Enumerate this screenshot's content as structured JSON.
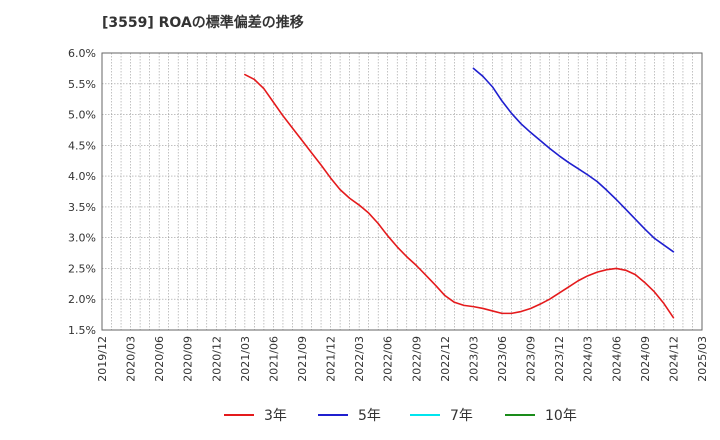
{
  "chart_data": {
    "type": "line",
    "title": "[3559]  ROAの標準偏差の推移",
    "ylim": [
      1.5,
      6.0
    ],
    "y_ticks": [
      "1.5%",
      "2.0%",
      "2.5%",
      "3.0%",
      "3.5%",
      "4.0%",
      "4.5%",
      "5.0%",
      "5.5%",
      "6.0%"
    ],
    "x_ticks": [
      "2019/12",
      "2020/03",
      "2020/06",
      "2020/09",
      "2020/12",
      "2021/03",
      "2021/06",
      "2021/09",
      "2021/12",
      "2022/03",
      "2022/06",
      "2022/09",
      "2022/12",
      "2023/03",
      "2023/06",
      "2023/09",
      "2023/12",
      "2024/03",
      "2024/06",
      "2024/09",
      "2024/12",
      "2025/03"
    ],
    "grid": true,
    "legend_position": "bottom",
    "series": [
      {
        "name": "3年",
        "color": "#e41a1c",
        "values": [
          [
            "2021/03",
            5.65
          ],
          [
            "2021/04",
            5.57
          ],
          [
            "2021/05",
            5.42
          ],
          [
            "2021/06",
            5.2
          ],
          [
            "2021/07",
            4.98
          ],
          [
            "2021/08",
            4.78
          ],
          [
            "2021/09",
            4.58
          ],
          [
            "2021/10",
            4.38
          ],
          [
            "2021/11",
            4.18
          ],
          [
            "2021/12",
            3.97
          ],
          [
            "2022/01",
            3.78
          ],
          [
            "2022/02",
            3.64
          ],
          [
            "2022/03",
            3.53
          ],
          [
            "2022/04",
            3.4
          ],
          [
            "2022/05",
            3.23
          ],
          [
            "2022/06",
            3.03
          ],
          [
            "2022/07",
            2.85
          ],
          [
            "2022/08",
            2.69
          ],
          [
            "2022/09",
            2.55
          ],
          [
            "2022/10",
            2.39
          ],
          [
            "2022/11",
            2.23
          ],
          [
            "2022/12",
            2.06
          ],
          [
            "2023/01",
            1.95
          ],
          [
            "2023/02",
            1.9
          ],
          [
            "2023/03",
            1.88
          ],
          [
            "2023/04",
            1.85
          ],
          [
            "2023/05",
            1.81
          ],
          [
            "2023/06",
            1.77
          ],
          [
            "2023/07",
            1.77
          ],
          [
            "2023/08",
            1.8
          ],
          [
            "2023/09",
            1.85
          ],
          [
            "2023/10",
            1.92
          ],
          [
            "2023/11",
            2.0
          ],
          [
            "2023/12",
            2.1
          ],
          [
            "2024/01",
            2.2
          ],
          [
            "2024/02",
            2.3
          ],
          [
            "2024/03",
            2.38
          ],
          [
            "2024/04",
            2.44
          ],
          [
            "2024/05",
            2.48
          ],
          [
            "2024/06",
            2.5
          ],
          [
            "2024/07",
            2.47
          ],
          [
            "2024/08",
            2.4
          ],
          [
            "2024/09",
            2.27
          ],
          [
            "2024/10",
            2.12
          ],
          [
            "2024/11",
            1.93
          ],
          [
            "2024/12",
            1.7
          ]
        ]
      },
      {
        "name": "5年",
        "color": "#1f1fcf",
        "values": [
          [
            "2023/03",
            5.75
          ],
          [
            "2023/04",
            5.62
          ],
          [
            "2023/05",
            5.45
          ],
          [
            "2023/06",
            5.22
          ],
          [
            "2023/07",
            5.02
          ],
          [
            "2023/08",
            4.85
          ],
          [
            "2023/09",
            4.71
          ],
          [
            "2023/10",
            4.58
          ],
          [
            "2023/11",
            4.45
          ],
          [
            "2023/12",
            4.33
          ],
          [
            "2024/01",
            4.22
          ],
          [
            "2024/02",
            4.12
          ],
          [
            "2024/03",
            4.02
          ],
          [
            "2024/04",
            3.91
          ],
          [
            "2024/05",
            3.77
          ],
          [
            "2024/06",
            3.62
          ],
          [
            "2024/07",
            3.46
          ],
          [
            "2024/08",
            3.3
          ],
          [
            "2024/09",
            3.14
          ],
          [
            "2024/10",
            2.99
          ],
          [
            "2024/11",
            2.88
          ],
          [
            "2024/12",
            2.77
          ]
        ]
      },
      {
        "name": "7年",
        "color": "#00e5ee",
        "values": []
      },
      {
        "name": "10年",
        "color": "#1a8c1a",
        "values": []
      }
    ]
  }
}
